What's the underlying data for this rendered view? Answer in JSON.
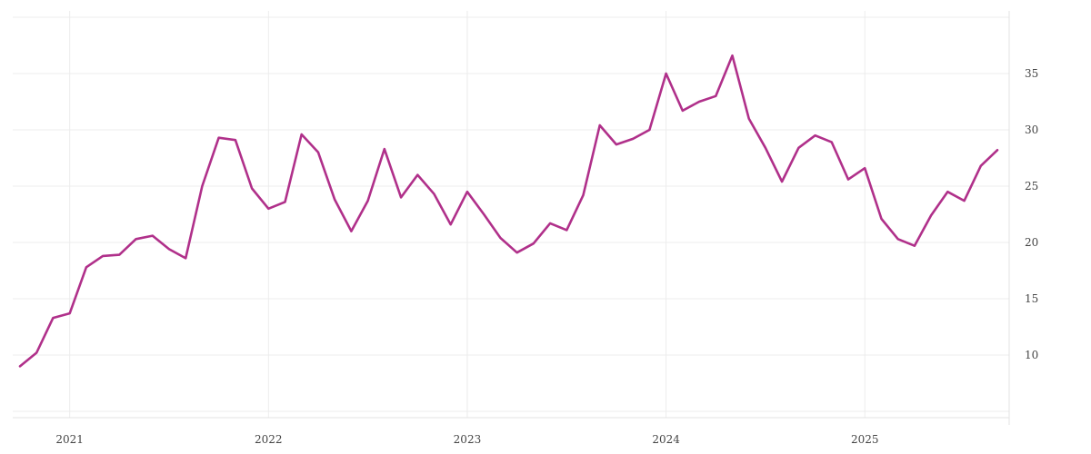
{
  "chart_data": {
    "type": "line",
    "title": "",
    "xlabel": "",
    "ylabel": "",
    "x_ticks": [
      "2021",
      "2022",
      "2023",
      "2024",
      "2025"
    ],
    "y_ticks": [
      10,
      15,
      20,
      25,
      30,
      35
    ],
    "xlim": [
      "2020-10-01",
      "2025-09-01"
    ],
    "ylim": [
      5,
      40
    ],
    "grid": true,
    "legend": "none",
    "y_axis_position": "right",
    "line_color": "#b0308a",
    "series": [
      {
        "x": [
          "2020-10",
          "2020-11",
          "2020-12",
          "2021-01",
          "2021-02",
          "2021-03",
          "2021-04",
          "2021-05",
          "2021-06",
          "2021-07",
          "2021-08",
          "2021-09",
          "2021-10",
          "2021-11",
          "2021-12",
          "2022-01",
          "2022-02",
          "2022-03",
          "2022-04",
          "2022-05",
          "2022-06",
          "2022-07",
          "2022-08",
          "2022-09",
          "2022-10",
          "2022-11",
          "2022-12",
          "2023-01",
          "2023-02",
          "2023-03",
          "2023-04",
          "2023-05",
          "2023-06",
          "2023-07",
          "2023-08",
          "2023-09",
          "2023-10",
          "2023-11",
          "2023-12",
          "2024-01",
          "2024-02",
          "2024-03",
          "2024-04",
          "2024-05",
          "2024-06",
          "2024-07",
          "2024-08",
          "2024-09",
          "2024-10",
          "2024-11",
          "2024-12",
          "2025-01",
          "2025-02",
          "2025-03",
          "2025-04",
          "2025-05",
          "2025-06",
          "2025-07",
          "2025-08",
          "2025-09"
        ],
        "values": [
          9.0,
          10.2,
          13.3,
          13.7,
          17.8,
          18.8,
          18.9,
          20.3,
          20.6,
          19.4,
          18.6,
          25.0,
          29.3,
          29.1,
          24.8,
          23.0,
          23.6,
          29.6,
          28.0,
          23.8,
          21.0,
          23.7,
          28.3,
          24.0,
          26.0,
          24.3,
          21.6,
          24.5,
          22.5,
          20.4,
          19.1,
          19.9,
          21.7,
          21.1,
          24.2,
          30.4,
          28.7,
          29.2,
          30.0,
          35.0,
          31.7,
          32.5,
          33.0,
          36.6,
          31.0,
          28.4,
          25.4,
          28.4,
          29.5,
          28.9,
          25.6,
          26.6,
          22.1,
          20.3,
          19.7,
          22.4,
          24.5,
          23.7,
          26.8,
          28.2
        ]
      }
    ]
  }
}
